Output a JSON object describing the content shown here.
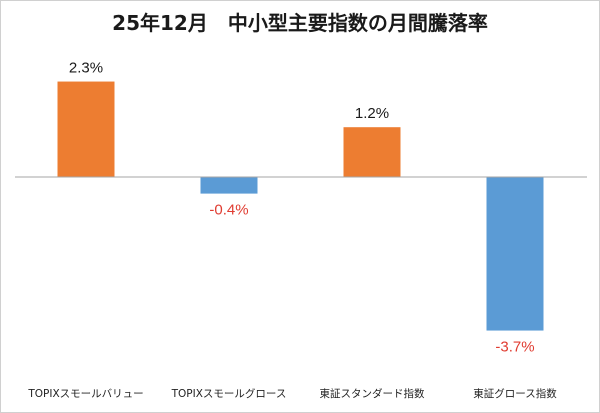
{
  "chart_data": {
    "type": "bar",
    "title": "25年12月　中小型主要指数の月間騰落率",
    "categories": [
      "TOPIXスモールバリュー",
      "TOPIXスモールグロース",
      "東証スタンダード指数",
      "東証グロース指数"
    ],
    "values": [
      2.3,
      -0.4,
      1.2,
      -3.7
    ],
    "value_labels": [
      "2.3%",
      "-0.4%",
      "1.2%",
      "-3.7%"
    ],
    "ylim": [
      -4.2,
      3.0
    ],
    "grid": false,
    "legend": "none",
    "xlabel": "",
    "ylabel": ""
  },
  "colors": {
    "positive_bar": "#ED7D31",
    "negative_bar": "#5B9BD5",
    "positive_label": "#1a1a1a",
    "negative_label": "#E03C31",
    "baseline": "#a6a6a6",
    "frame_border": "#d0d0d0"
  }
}
